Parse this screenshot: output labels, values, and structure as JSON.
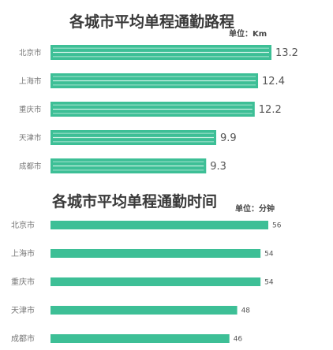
{
  "chart_data": [
    {
      "type": "bar",
      "orientation": "horizontal",
      "title": "各城市平均单程通勤路程",
      "unit_label": "单位：Km",
      "categories": [
        "北京市",
        "上海市",
        "重庆市",
        "天津市",
        "成都市"
      ],
      "values": [
        13.2,
        12.4,
        12.2,
        9.9,
        9.3
      ],
      "value_labels": [
        "13.2",
        "12.4",
        "12.2",
        "9.9",
        "9.3"
      ],
      "xlim": [
        0,
        13.2
      ],
      "grid": false,
      "legend": "none",
      "bar_color": "#3dbf96",
      "stripe_color": "#dff7ee"
    },
    {
      "type": "bar",
      "orientation": "horizontal",
      "title": "各城市平均单程通勤时间",
      "unit_label": "单位：分钟",
      "categories": [
        "北京市",
        "上海市",
        "重庆市",
        "天津市",
        "成都市"
      ],
      "values": [
        56,
        54,
        54,
        48,
        46
      ],
      "value_labels": [
        "56",
        "54",
        "54",
        "48",
        "46"
      ],
      "xlim": [
        0,
        56
      ],
      "grid": false,
      "legend": "none",
      "bar_color": "#3dbf96"
    }
  ]
}
